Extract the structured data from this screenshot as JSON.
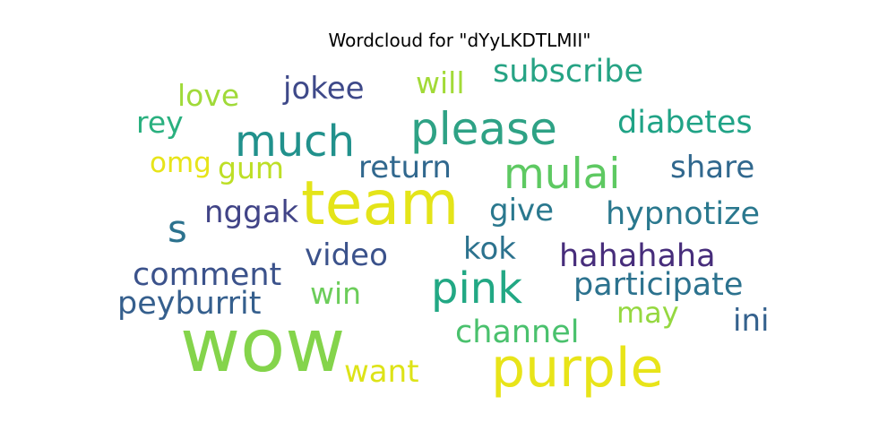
{
  "chart_data": {
    "type": "wordcloud",
    "title": "Wordcloud for \"dYyLKDTLMII\"",
    "words": [
      {
        "text": "wow",
        "weight": 1.0,
        "color": "#84d44b"
      },
      {
        "text": "team",
        "weight": 0.84,
        "color": "#e4e419"
      },
      {
        "text": "purple",
        "weight": 0.78,
        "color": "#e8e419"
      },
      {
        "text": "please",
        "weight": 0.64,
        "color": "#2ea285"
      },
      {
        "text": "pink",
        "weight": 0.62,
        "color": "#22a884"
      },
      {
        "text": "much",
        "weight": 0.61,
        "color": "#21918c"
      },
      {
        "text": "mulai",
        "weight": 0.61,
        "color": "#5ec962"
      },
      {
        "text": "s",
        "weight": 0.55,
        "color": "#2c728e"
      },
      {
        "text": "hahahaha",
        "weight": 0.46,
        "color": "#472d7b"
      },
      {
        "text": "hypnotize",
        "weight": 0.46,
        "color": "#2a788e"
      },
      {
        "text": "participate",
        "weight": 0.46,
        "color": "#2c728e"
      },
      {
        "text": "subscribe",
        "weight": 0.45,
        "color": "#26a384"
      },
      {
        "text": "diabetes",
        "weight": 0.45,
        "color": "#20a386"
      },
      {
        "text": "comment",
        "weight": 0.45,
        "color": "#3b528b"
      },
      {
        "text": "peyburrit",
        "weight": 0.45,
        "color": "#355f8d"
      },
      {
        "text": "channel",
        "weight": 0.45,
        "color": "#4ac16d"
      },
      {
        "text": "jokee",
        "weight": 0.44,
        "color": "#3e4989"
      },
      {
        "text": "return",
        "weight": 0.44,
        "color": "#31688e"
      },
      {
        "text": "share",
        "weight": 0.44,
        "color": "#31688e"
      },
      {
        "text": "nggak",
        "weight": 0.44,
        "color": "#414487"
      },
      {
        "text": "give",
        "weight": 0.44,
        "color": "#2a788e"
      },
      {
        "text": "video",
        "weight": 0.44,
        "color": "#3b528b"
      },
      {
        "text": "kok",
        "weight": 0.44,
        "color": "#2c728e"
      },
      {
        "text": "want",
        "weight": 0.44,
        "color": "#dde318"
      },
      {
        "text": "ini",
        "weight": 0.44,
        "color": "#34618d"
      },
      {
        "text": "love",
        "weight": 0.42,
        "color": "#a0da39"
      },
      {
        "text": "will",
        "weight": 0.42,
        "color": "#a2da37"
      },
      {
        "text": "rey",
        "weight": 0.42,
        "color": "#2ab07f"
      },
      {
        "text": "gum",
        "weight": 0.42,
        "color": "#bddf26"
      },
      {
        "text": "win",
        "weight": 0.42,
        "color": "#6ccd5a"
      },
      {
        "text": "may",
        "weight": 0.42,
        "color": "#95d840"
      },
      {
        "text": "omg",
        "weight": 0.4,
        "color": "#e7e419"
      }
    ]
  }
}
